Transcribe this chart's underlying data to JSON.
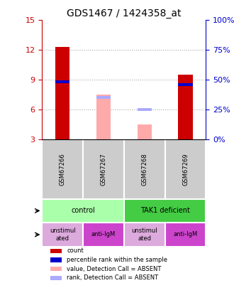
{
  "title": "GDS1467 / 1424358_at",
  "samples": [
    "GSM67266",
    "GSM67267",
    "GSM67268",
    "GSM67269"
  ],
  "ylim_left": [
    3,
    15
  ],
  "yticks_left": [
    3,
    6,
    9,
    12,
    15
  ],
  "ylim_right": [
    0,
    100
  ],
  "yticks_right": [
    0,
    25,
    50,
    75,
    100
  ],
  "red_bars": [
    12.3,
    0,
    0,
    9.5
  ],
  "blue_segments": [
    8.8,
    0,
    0,
    8.5
  ],
  "pink_bars": [
    0,
    7.5,
    4.5,
    0
  ],
  "lightblue_segments": [
    0,
    7.2,
    6.0,
    0
  ],
  "bar_width": 0.35,
  "red_color": "#cc0000",
  "blue_color": "#0000cc",
  "pink_color": "#ffaaaa",
  "lightblue_color": "#aaaaff",
  "cell_line_labels": [
    "control",
    "TAK1 deficient"
  ],
  "cell_line_spans": [
    [
      0,
      2
    ],
    [
      2,
      4
    ]
  ],
  "cell_line_colors": [
    "#aaffaa",
    "#44cc44"
  ],
  "agent_labels": [
    "unstimul\nated",
    "anti-IgM",
    "unstimul\nated",
    "anti-IgM"
  ],
  "agent_colors": [
    "#ddaadd",
    "#cc44cc",
    "#ddaadd",
    "#cc44cc"
  ],
  "legend_items": [
    {
      "label": "count",
      "color": "#cc0000"
    },
    {
      "label": "percentile rank within the sample",
      "color": "#0000cc"
    },
    {
      "label": "value, Detection Call = ABSENT",
      "color": "#ffaaaa"
    },
    {
      "label": "rank, Detection Call = ABSENT",
      "color": "#aaaaff"
    }
  ],
  "left_label_color": "#cc0000",
  "right_label_color": "#0000cc",
  "chart_bg": "#ffffff",
  "grid_color": "#aaaaaa"
}
